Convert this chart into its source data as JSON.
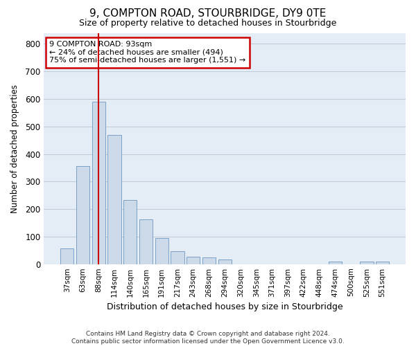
{
  "title": "9, COMPTON ROAD, STOURBRIDGE, DY9 0TE",
  "subtitle": "Size of property relative to detached houses in Stourbridge",
  "xlabel": "Distribution of detached houses by size in Stourbridge",
  "ylabel": "Number of detached properties",
  "footnote1": "Contains HM Land Registry data © Crown copyright and database right 2024.",
  "footnote2": "Contains public sector information licensed under the Open Government Licence v3.0.",
  "bin_labels": [
    "37sqm",
    "63sqm",
    "88sqm",
    "114sqm",
    "140sqm",
    "165sqm",
    "191sqm",
    "217sqm",
    "243sqm",
    "268sqm",
    "294sqm",
    "320sqm",
    "345sqm",
    "371sqm",
    "397sqm",
    "422sqm",
    "448sqm",
    "474sqm",
    "500sqm",
    "525sqm",
    "551sqm"
  ],
  "bar_values": [
    58,
    355,
    590,
    470,
    233,
    163,
    95,
    47,
    27,
    25,
    18,
    0,
    0,
    0,
    0,
    0,
    0,
    10,
    0,
    10,
    8
  ],
  "bar_color": "#ccd9e8",
  "bar_edge_color": "#7aa0c4",
  "grid_color": "#c0cdd8",
  "background_color": "#e4edf5",
  "vline_x_index": 2.0,
  "vline_color": "#cc0000",
  "annotation_text": "9 COMPTON ROAD: 93sqm\n← 24% of detached houses are smaller (494)\n75% of semi-detached houses are larger (1,551) →",
  "annotation_box_color": "#cc0000",
  "ylim": [
    0,
    840
  ],
  "yticks": [
    0,
    100,
    200,
    300,
    400,
    500,
    600,
    700,
    800
  ],
  "title_fontsize": 11,
  "subtitle_fontsize": 9.5
}
